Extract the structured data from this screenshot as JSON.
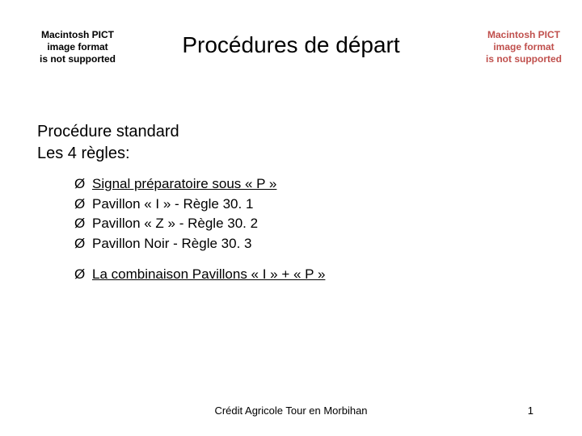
{
  "placeholder": {
    "line1": "Macintosh PICT",
    "line2": "image format",
    "line3": "is not supported"
  },
  "title": "Procédures de départ",
  "subtitle_line1": "Procédure standard",
  "subtitle_line2": "Les 4 règles:",
  "bullet_glyph": "Ø",
  "rules": [
    "Signal préparatoire sous « P »",
    "Pavillon « I » - Règle 30. 1",
    "Pavillon « Z » - Règle 30. 2",
    "Pavillon Noir - Règle 30. 3"
  ],
  "combo": "La combinaison Pavillons « I » + « P »",
  "footer_center": "Crédit Agricole Tour en Morbihan",
  "page_number": "1",
  "colors": {
    "text": "#000000",
    "placeholder_right": "#c0504d",
    "background": "#ffffff"
  },
  "fonts": {
    "body": "Comic Sans MS",
    "footer": "Arial",
    "placeholder": "Arial"
  }
}
